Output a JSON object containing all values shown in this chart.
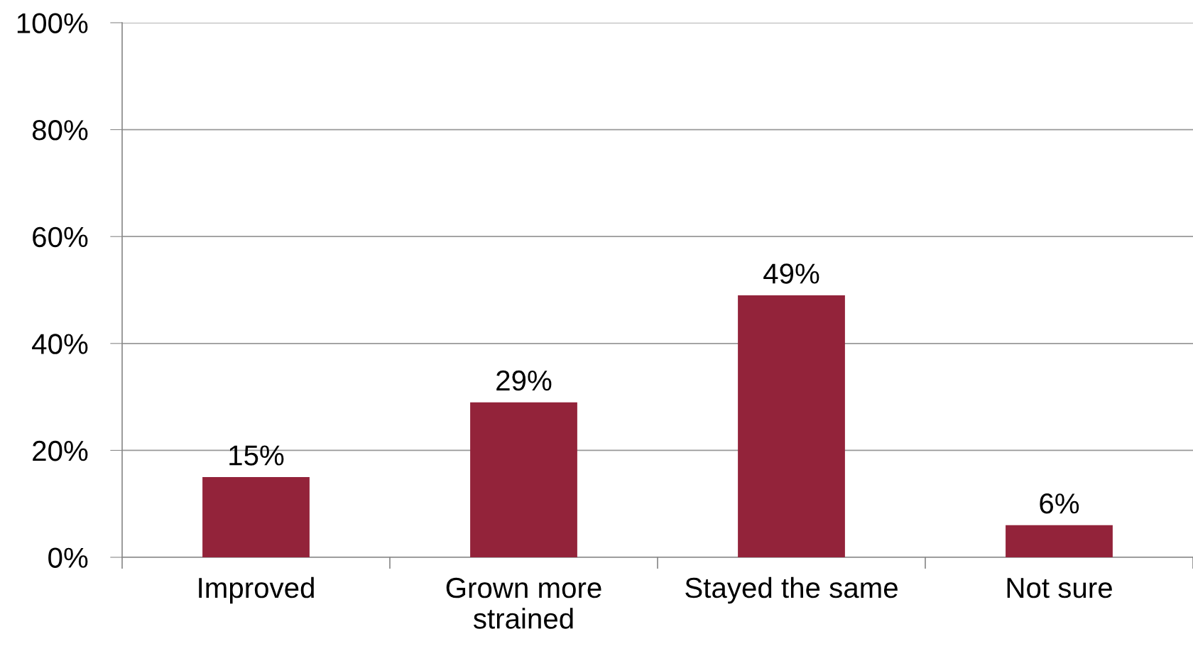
{
  "chart_data": {
    "type": "bar",
    "categories": [
      "Improved",
      "Grown more\nstrained",
      "Stayed the same",
      "Not sure"
    ],
    "values": [
      15,
      29,
      49,
      6
    ],
    "color": "#93233a",
    "ylim": [
      0,
      100
    ],
    "yticks": [
      {
        "value": 0,
        "label": "0%"
      },
      {
        "value": 20,
        "label": "20%"
      },
      {
        "value": 40,
        "label": "40%"
      },
      {
        "value": 60,
        "label": "60%"
      },
      {
        "value": 80,
        "label": "80%"
      },
      {
        "value": 100,
        "label": "100%"
      }
    ],
    "value_labels": [
      "15%",
      "29%",
      "49%",
      "6%"
    ],
    "grid": "y",
    "legend": false
  }
}
